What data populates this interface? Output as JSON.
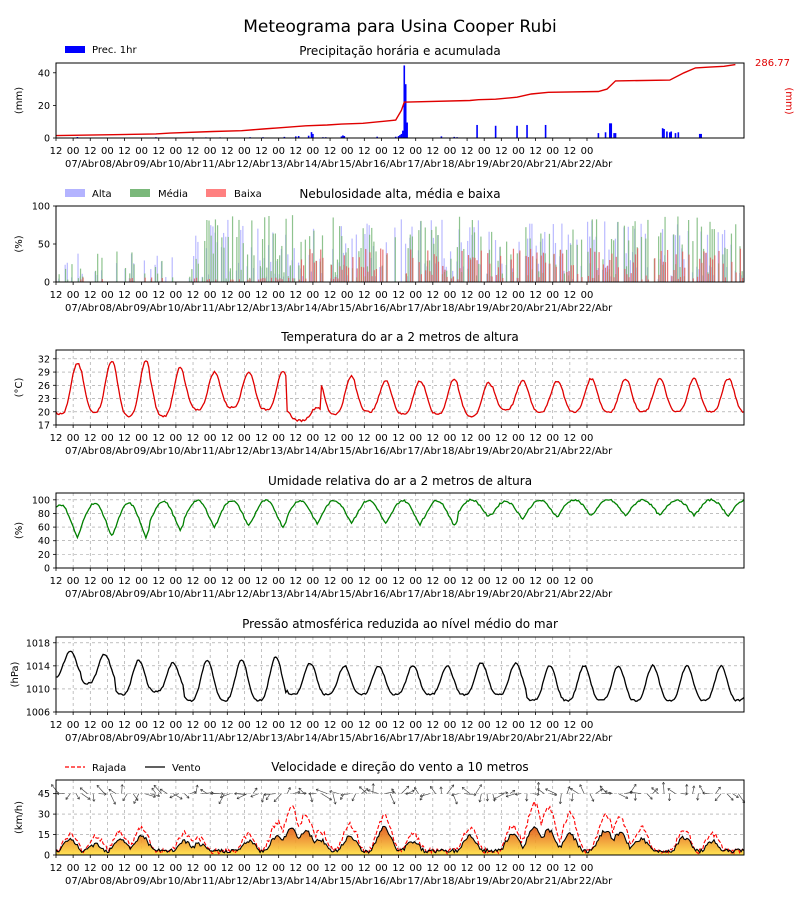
{
  "page": {
    "title": "Meteograma para Usina Cooper Rubi"
  },
  "x_axis": {
    "ticks": [
      "12",
      "00",
      "12",
      "00",
      "12",
      "00",
      "12",
      "00",
      "12",
      "00",
      "12",
      "00",
      "12",
      "00",
      "12",
      "00",
      "12",
      "00",
      "12",
      "00",
      "12",
      "00",
      "12",
      "00",
      "12",
      "00",
      "12",
      "00",
      "12",
      "00",
      "12",
      "00"
    ],
    "dates": [
      "07/Abr",
      "08/Abr",
      "09/Abr",
      "10/Abr",
      "11/Abr",
      "12/Abr",
      "13/Abr",
      "14/Abr",
      "15/Abr",
      "16/Abr",
      "17/Abr",
      "18/Abr",
      "19/Abr",
      "20/Abr",
      "21/Abr",
      "22/Abr"
    ]
  },
  "chart_data": [
    {
      "id": "precip",
      "type": "bar",
      "title": "Precipitação horária e acumulada",
      "ylabel": "(mm)",
      "y2label": "(mm)",
      "ylim": [
        0,
        46
      ],
      "yticks": [
        "0",
        "20",
        "40"
      ],
      "y2_total_label": "286.77",
      "legend": [
        {
          "name": "Prec. 1hr",
          "color": "#0000ff"
        }
      ],
      "hours_range": [
        0,
        382
      ],
      "bars_hourly": [
        [
          15,
          0.6
        ],
        [
          45,
          0.3
        ],
        [
          70,
          0.5
        ],
        [
          105,
          0.4
        ],
        [
          115,
          0.4
        ],
        [
          130,
          0.3
        ],
        [
          136,
          0.5
        ],
        [
          145,
          0.5
        ],
        [
          160,
          0.7
        ],
        [
          168,
          1.0
        ],
        [
          170,
          1.2
        ],
        [
          177,
          1.4
        ],
        [
          179,
          3.6
        ],
        [
          180,
          2.5
        ],
        [
          187,
          0.5
        ],
        [
          189,
          0.5
        ],
        [
          200,
          1.0
        ],
        [
          201,
          1.6
        ],
        [
          202,
          1.2
        ],
        [
          225,
          0.8
        ],
        [
          238,
          0.8
        ],
        [
          240,
          1.2
        ],
        [
          241,
          1.8
        ],
        [
          242,
          2.5
        ],
        [
          243,
          4.5
        ],
        [
          244,
          44.5
        ],
        [
          245,
          33.0
        ],
        [
          246,
          9.5
        ],
        [
          270,
          1.0
        ],
        [
          279,
          0.7
        ],
        [
          281,
          0.5
        ],
        [
          295,
          8.0
        ],
        [
          308,
          7.5
        ],
        [
          323,
          7.5
        ],
        [
          330,
          8.0
        ],
        [
          343,
          8.0
        ],
        [
          380,
          3.0
        ],
        [
          385,
          3.5
        ],
        [
          388,
          9.0
        ],
        [
          389,
          9.0
        ],
        [
          391,
          3.0
        ],
        [
          392,
          3.0
        ]
      ],
      "bars_hourly_tail": [
        [
          425,
          6.0
        ],
        [
          426,
          5.5
        ],
        [
          428,
          4.0
        ],
        [
          430,
          3.5
        ],
        [
          431,
          4.0
        ],
        [
          434,
          3.0
        ],
        [
          436,
          3.5
        ],
        [
          451,
          2.5
        ],
        [
          452,
          2.5
        ]
      ],
      "accumulated": [
        [
          0,
          1.5
        ],
        [
          40,
          2.0
        ],
        [
          70,
          2.5
        ],
        [
          80,
          3.0
        ],
        [
          110,
          4.0
        ],
        [
          130,
          4.5
        ],
        [
          145,
          5.5
        ],
        [
          160,
          6.5
        ],
        [
          175,
          7.5
        ],
        [
          190,
          8.0
        ],
        [
          200,
          8.5
        ],
        [
          215,
          9.0
        ],
        [
          238,
          11.0
        ],
        [
          242,
          17.0
        ],
        [
          244,
          22.0
        ],
        [
          246,
          22.0
        ],
        [
          290,
          23.0
        ],
        [
          296,
          23.5
        ],
        [
          308,
          23.8
        ],
        [
          323,
          25.0
        ],
        [
          333,
          27.0
        ],
        [
          345,
          28.0
        ],
        [
          380,
          28.5
        ],
        [
          386,
          30.0
        ],
        [
          392,
          35.0
        ],
        [
          430,
          35.5
        ],
        [
          440,
          40.0
        ],
        [
          448,
          43.0
        ],
        [
          458,
          43.5
        ],
        [
          468,
          44.0
        ],
        [
          476,
          45.0
        ]
      ]
    },
    {
      "id": "clouds",
      "type": "bar",
      "title": "Nebulosidade alta, média e baixa",
      "ylabel": "(%)",
      "ylim": [
        0,
        100
      ],
      "yticks": [
        "0",
        "50",
        "100"
      ],
      "legend": [
        {
          "name": "Alta",
          "color": "#b3b3ff"
        },
        {
          "name": "Média",
          "color": "#7ab87a"
        },
        {
          "name": "Baixa",
          "color": "#ff8080"
        }
      ]
    },
    {
      "id": "temp",
      "type": "line",
      "title": "Temperatura do ar a 2 metros de altura",
      "ylabel": "(°C)",
      "ylim": [
        17,
        34
      ],
      "yticks": [
        "17",
        "20",
        "23",
        "26",
        "29",
        "32"
      ],
      "color": "#e00000",
      "daily_max": [
        31,
        31.5,
        31.5,
        30,
        29,
        29,
        29,
        21,
        28,
        27,
        27,
        27.5,
        26.5,
        27,
        27,
        27.5
      ],
      "daily_min": [
        19.5,
        20,
        19,
        19,
        20.5,
        21,
        20.5,
        18,
        19.5,
        20,
        19.5,
        19.5,
        19,
        20.5,
        20,
        20
      ]
    },
    {
      "id": "humidity",
      "type": "line",
      "title": "Umidade relativa do ar a 2 metros de altura",
      "ylabel": "(%)",
      "ylim": [
        0,
        110
      ],
      "yticks": [
        "0",
        "20",
        "40",
        "60",
        "80",
        "100"
      ],
      "color": "#008000",
      "daily_max": [
        93,
        95,
        95,
        98,
        99,
        99,
        99,
        99,
        99,
        99,
        99,
        99,
        100,
        98,
        99,
        100
      ],
      "daily_min": [
        45,
        47,
        45,
        55,
        60,
        62,
        60,
        65,
        67,
        65,
        64,
        62,
        75,
        72,
        75,
        77
      ]
    },
    {
      "id": "pressure",
      "type": "line",
      "title": "Pressão atmosférica reduzida ao nível médio do mar",
      "ylabel": "(hPa)",
      "ylim": [
        1006,
        1019
      ],
      "yticks": [
        "1006",
        "1010",
        "1014",
        "1018"
      ],
      "color": "#000000",
      "daily_max": [
        1016.5,
        1016,
        1015,
        1014.5,
        1015,
        1015,
        1015.5,
        1014.5,
        1014,
        1014,
        1014,
        1014,
        1014.5,
        1014.5,
        1014,
        1014
      ],
      "daily_min": [
        1012,
        1011,
        1009,
        1009.5,
        1008,
        1008,
        1008,
        1009,
        1009,
        1009,
        1009,
        1009,
        1009,
        1009,
        1008,
        1008
      ]
    },
    {
      "id": "wind",
      "type": "area",
      "title": "Velocidade e direção do vento a 10 metros",
      "ylabel": "(km/h)",
      "ylim": [
        0,
        55
      ],
      "yticks": [
        "0",
        "15",
        "30",
        "45"
      ],
      "legend": [
        {
          "name": "Rajada",
          "color": "#ff0000",
          "style": "dashed"
        },
        {
          "name": "Vento",
          "color": "#000000",
          "style": "solid"
        }
      ],
      "gust_peaks": [
        [
          10,
          15
        ],
        [
          28,
          14
        ],
        [
          45,
          17
        ],
        [
          60,
          20
        ],
        [
          90,
          16
        ],
        [
          100,
          12
        ],
        [
          135,
          15
        ],
        [
          155,
          24
        ],
        [
          165,
          35
        ],
        [
          175,
          30
        ],
        [
          185,
          18
        ],
        [
          206,
          22
        ],
        [
          230,
          28
        ],
        [
          250,
          16
        ],
        [
          290,
          20
        ],
        [
          320,
          22
        ],
        [
          335,
          38
        ],
        [
          345,
          35
        ],
        [
          360,
          30
        ],
        [
          385,
          30
        ],
        [
          395,
          28
        ],
        [
          410,
          20
        ],
        [
          440,
          18
        ],
        [
          460,
          15
        ]
      ],
      "wind_peaks": [
        [
          10,
          11
        ],
        [
          28,
          8
        ],
        [
          45,
          12
        ],
        [
          60,
          14
        ],
        [
          90,
          10
        ],
        [
          100,
          8
        ],
        [
          135,
          10
        ],
        [
          155,
          14
        ],
        [
          165,
          20
        ],
        [
          175,
          18
        ],
        [
          185,
          11
        ],
        [
          206,
          14
        ],
        [
          230,
          20
        ],
        [
          250,
          10
        ],
        [
          290,
          14
        ],
        [
          320,
          15
        ],
        [
          335,
          20
        ],
        [
          345,
          18
        ],
        [
          360,
          15
        ],
        [
          385,
          18
        ],
        [
          395,
          16
        ],
        [
          410,
          12
        ],
        [
          440,
          13
        ],
        [
          460,
          10
        ]
      ]
    }
  ]
}
